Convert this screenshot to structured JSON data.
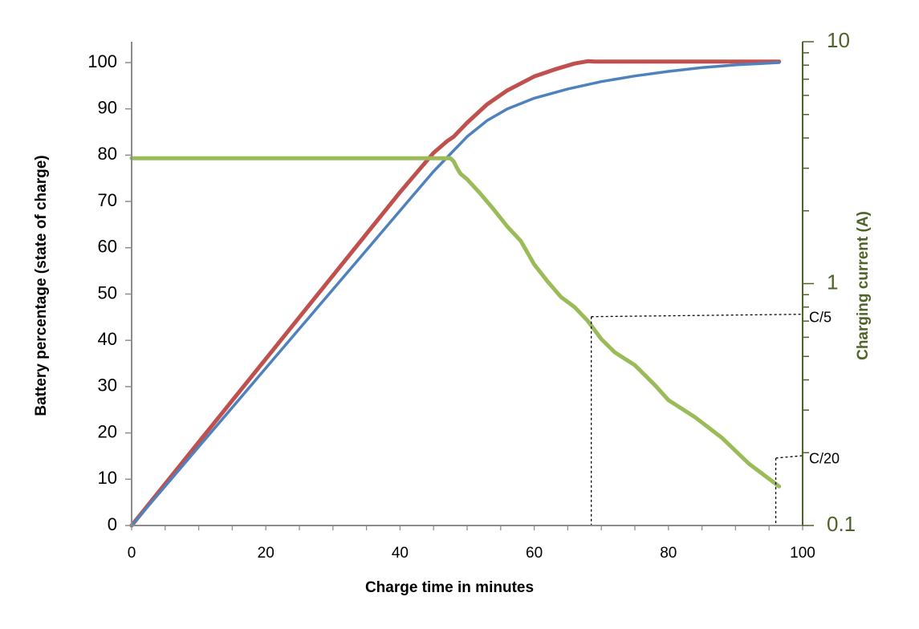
{
  "chart_data": {
    "type": "line",
    "title": "",
    "xlabel": "Charge time in minutes",
    "ylabel": "Battery percentage (state of charge)",
    "y2label": "Charging current (A)",
    "xlim": [
      0,
      100
    ],
    "ylim": [
      0,
      100
    ],
    "y2lim": [
      0.1,
      10
    ],
    "y2scale": "log",
    "grid": false,
    "x_ticks": [
      0,
      20,
      40,
      60,
      80,
      100
    ],
    "y_ticks": [
      0,
      10,
      20,
      30,
      40,
      50,
      60,
      70,
      80,
      90,
      100
    ],
    "y2_ticks": [
      0.1,
      1,
      10
    ],
    "colors": {
      "red": "#c0504d",
      "blue": "#4f81bd",
      "green": "#9bbb59",
      "right_axis": "#4f6228"
    },
    "series": [
      {
        "axis": "left",
        "color": "#c0504d",
        "x": [
          0,
          5,
          10,
          15,
          20,
          25,
          30,
          35,
          40,
          45,
          47,
          48,
          50,
          53,
          56,
          60,
          63,
          66,
          68,
          69,
          75,
          85,
          96.5
        ],
        "y": [
          0,
          9,
          18,
          27,
          36,
          45,
          54,
          63,
          72,
          80.5,
          83,
          84,
          87,
          91,
          94,
          97,
          98.5,
          99.8,
          100.3,
          100.2,
          100.2,
          100.2,
          100.2
        ]
      },
      {
        "axis": "left",
        "color": "#4f81bd",
        "x": [
          0,
          5,
          10,
          15,
          20,
          25,
          30,
          35,
          40,
          45,
          48,
          50,
          53,
          56,
          60,
          65,
          70,
          75,
          80,
          85,
          90,
          96.5
        ],
        "y": [
          0,
          8.5,
          17,
          25.5,
          34,
          42.5,
          51,
          59.5,
          68,
          76.5,
          81,
          84,
          87.5,
          90,
          92.3,
          94.3,
          95.9,
          97.1,
          98.1,
          98.9,
          99.5,
          100
        ]
      },
      {
        "axis": "right",
        "color": "#9bbb59",
        "x": [
          0,
          10,
          20,
          30,
          40,
          47.5,
          48,
          48.5,
          49,
          50,
          52,
          54,
          56,
          58,
          60,
          62,
          64,
          66,
          68,
          70,
          72,
          75,
          78,
          80,
          84,
          88,
          92,
          96.5
        ],
        "y": [
          3.3,
          3.3,
          3.3,
          3.3,
          3.3,
          3.3,
          3.2,
          3.0,
          2.85,
          2.7,
          2.35,
          2.02,
          1.72,
          1.5,
          1.2,
          1.02,
          0.88,
          0.8,
          0.7,
          0.59,
          0.52,
          0.46,
          0.38,
          0.33,
          0.28,
          0.23,
          0.18,
          0.145
        ]
      }
    ],
    "annotations": [
      {
        "label": "C/5",
        "x": 68.5,
        "y2": 0.73
      },
      {
        "label": "C/20",
        "x": 96,
        "y2": 0.19
      }
    ]
  }
}
